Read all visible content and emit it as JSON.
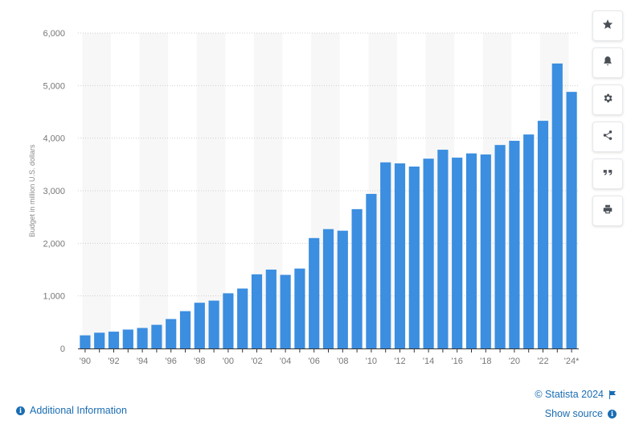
{
  "chart_data": {
    "type": "bar",
    "categories": [
      "'90",
      "'91",
      "'92",
      "'93",
      "'94",
      "'95",
      "'96",
      "'97",
      "'98",
      "'99",
      "'00",
      "'01",
      "'02",
      "'03",
      "'04",
      "'05",
      "'06",
      "'07",
      "'08",
      "'09",
      "'10",
      "'11",
      "'12",
      "'13",
      "'14",
      "'15",
      "'16",
      "'17",
      "'18",
      "'19",
      "'20",
      "'21",
      "'22",
      "'23",
      "'24*"
    ],
    "x_tick_labels_shown": [
      "'90",
      "'92",
      "'94",
      "'96",
      "'98",
      "'00",
      "'02",
      "'04",
      "'06",
      "'08",
      "'10",
      "'12",
      "'14",
      "'16",
      "'18",
      "'20",
      "'22",
      "'24*"
    ],
    "values": [
      250,
      300,
      320,
      360,
      390,
      450,
      560,
      710,
      870,
      910,
      1050,
      1140,
      1410,
      1500,
      1400,
      1520,
      2100,
      2270,
      2240,
      2650,
      2940,
      3540,
      3520,
      3460,
      3610,
      3780,
      3630,
      3710,
      3690,
      3870,
      3950,
      4070,
      4330,
      5420,
      4880
    ],
    "ylabel": "Budget in million U.S. dollars",
    "xlabel": "",
    "ylim": [
      0,
      6000
    ],
    "yticks": [
      0,
      1000,
      2000,
      3000,
      4000,
      5000,
      6000
    ],
    "ytick_labels": [
      "0",
      "1,000",
      "2,000",
      "3,000",
      "4,000",
      "5,000",
      "6,000"
    ],
    "grid": true,
    "bar_color": "#3b8ee0",
    "band_color": "#f7f7f7"
  },
  "toolbar": {
    "items": [
      {
        "name": "favorite-star-icon"
      },
      {
        "name": "notification-bell-icon"
      },
      {
        "name": "settings-gear-icon"
      },
      {
        "name": "share-icon"
      },
      {
        "name": "citation-quote-icon"
      },
      {
        "name": "print-icon"
      }
    ]
  },
  "footer": {
    "additional_info": "Additional Information",
    "copyright": "© Statista 2024",
    "show_source": "Show source",
    "link_color": "#1a6db3"
  }
}
